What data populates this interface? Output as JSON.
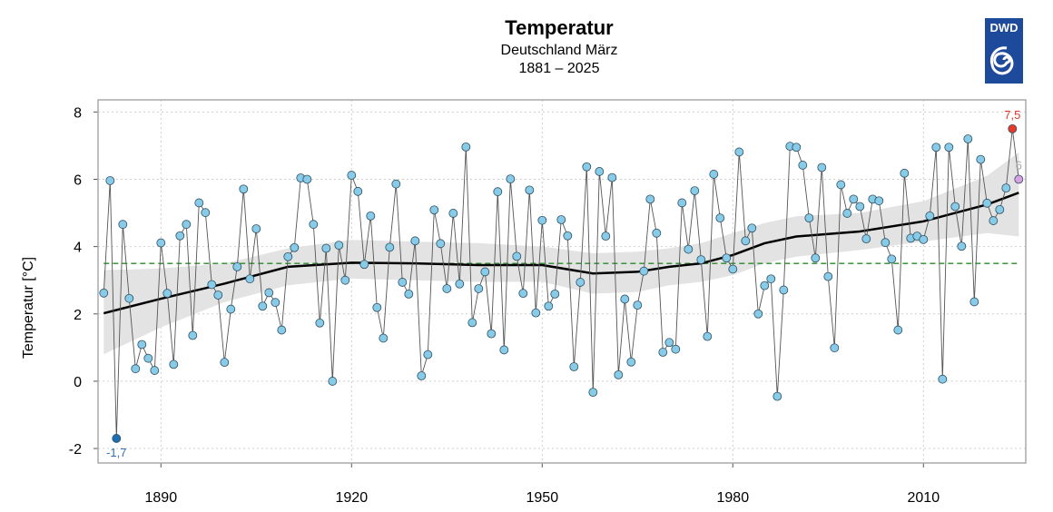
{
  "chart_data": {
    "type": "line",
    "title": "Temperatur",
    "subtitle": "Deutschland März",
    "period": "1881 – 2025",
    "ylabel": "Temperatur [°C]",
    "xlabel": "",
    "logo_text": "DWD",
    "xlim": [
      1880.1,
      2026.1
    ],
    "ylim": [
      -2.43,
      8.36
    ],
    "x_ticks": [
      1890,
      1920,
      1950,
      1980,
      2010
    ],
    "y_ticks": [
      -2,
      0,
      2,
      4,
      6,
      8
    ],
    "y_tick_labels": [
      "-2",
      "0",
      "2",
      "4",
      "6",
      "8"
    ],
    "x_tick_labels": [
      "1890",
      "1920",
      "1950",
      "1980",
      "2010"
    ],
    "grid": true,
    "start_year": 1881,
    "values": [
      2.62,
      5.96,
      -1.7,
      4.66,
      2.46,
      0.37,
      1.09,
      0.68,
      0.32,
      4.11,
      2.61,
      0.5,
      4.32,
      4.66,
      1.36,
      5.3,
      5.01,
      2.87,
      2.56,
      0.56,
      2.14,
      3.4,
      5.71,
      3.04,
      4.53,
      2.23,
      2.63,
      2.34,
      1.52,
      3.7,
      3.97,
      6.04,
      6.0,
      4.66,
      1.73,
      3.95,
      0.0,
      4.04,
      3.0,
      6.12,
      5.64,
      3.47,
      4.91,
      2.19,
      1.28,
      3.98,
      5.86,
      2.94,
      2.59,
      4.17,
      0.16,
      0.79,
      5.09,
      4.09,
      2.75,
      4.99,
      2.89,
      6.96,
      1.74,
      2.75,
      3.25,
      1.41,
      5.63,
      0.93,
      6.01,
      3.71,
      2.61,
      5.68,
      2.03,
      4.78,
      2.23,
      2.59,
      4.8,
      4.32,
      0.43,
      2.94,
      6.37,
      -0.33,
      6.23,
      4.31,
      6.05,
      0.19,
      2.44,
      0.57,
      2.26,
      3.27,
      5.41,
      4.4,
      0.86,
      1.15,
      0.95,
      5.3,
      3.92,
      5.66,
      3.61,
      1.33,
      6.15,
      4.85,
      3.66,
      3.33,
      6.81,
      4.17,
      4.55,
      2.0,
      2.84,
      3.04,
      -0.45,
      2.71,
      6.98,
      6.95,
      6.42,
      4.85,
      3.66,
      6.35,
      3.11,
      0.99,
      5.84,
      4.99,
      5.41,
      5.19,
      4.23,
      5.41,
      5.36,
      4.12,
      3.63,
      1.52,
      6.18,
      4.25,
      4.31,
      4.21,
      4.91,
      6.95,
      0.06,
      6.95,
      5.19,
      4.01,
      7.2,
      2.36,
      6.59,
      5.29,
      4.77,
      5.1,
      5.74,
      7.5,
      6.0
    ],
    "trend": {
      "years": [
        1881,
        1890,
        1900,
        1910,
        1920,
        1930,
        1940,
        1950,
        1958,
        1965,
        1970,
        1975,
        1980,
        1985,
        1990,
        2000,
        2010,
        2020,
        2025
      ],
      "values": [
        2.02,
        2.45,
        2.9,
        3.4,
        3.52,
        3.5,
        3.45,
        3.45,
        3.2,
        3.25,
        3.4,
        3.5,
        3.75,
        4.1,
        4.3,
        4.45,
        4.75,
        5.25,
        5.6
      ],
      "lower": [
        0.8,
        1.6,
        2.35,
        2.85,
        3.05,
        3.0,
        2.95,
        2.95,
        2.6,
        2.65,
        2.85,
        2.95,
        3.15,
        3.5,
        3.7,
        3.9,
        4.15,
        4.4,
        4.3
      ],
      "upper": [
        3.3,
        3.35,
        3.5,
        3.95,
        4.2,
        4.15,
        4.1,
        4.0,
        3.8,
        3.85,
        3.95,
        4.1,
        4.4,
        4.7,
        4.9,
        5.0,
        5.35,
        6.1,
        6.8
      ]
    },
    "reference_line": 3.5,
    "annotations": {
      "min": {
        "year": 1883,
        "label": "-1,7"
      },
      "max": {
        "year": 2024,
        "label": "7,5"
      },
      "last": {
        "year": 2025,
        "label": "6"
      }
    },
    "colors": {
      "point": "#87cbe8",
      "min": "#1f6db3",
      "max": "#e8392a",
      "last": "#d9a0e3",
      "trend": "#000000",
      "band": "#e3e3e3",
      "reference": "#2a8a2a",
      "logo": "#1e4a9c",
      "min_label": "#2f6fb0",
      "max_label": "#e0392b",
      "last_label": "#aaaaaa"
    }
  }
}
